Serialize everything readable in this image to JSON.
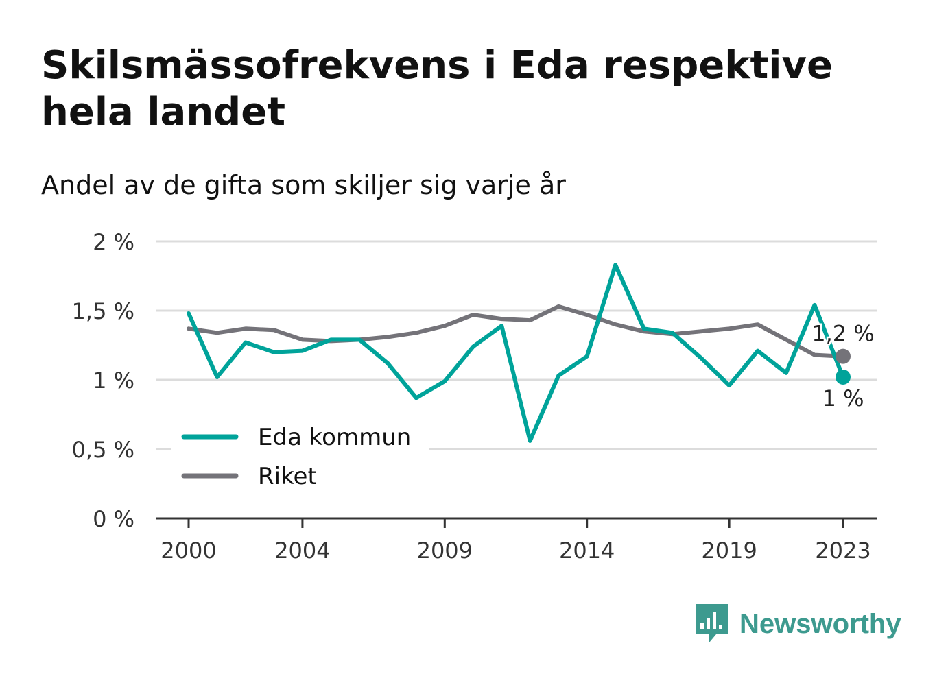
{
  "title": "Skilsmässofrekvens i Eda respektive hela landet",
  "subtitle": "Andel av de gifta som skiljer sig varje år",
  "brand": {
    "name": "Newsworthy",
    "icon": "bar-chart-speech-bubble-icon",
    "color": "#3d9a8f"
  },
  "chart_data": {
    "type": "line",
    "x": [
      2000,
      2001,
      2002,
      2003,
      2004,
      2005,
      2006,
      2007,
      2008,
      2009,
      2010,
      2011,
      2012,
      2013,
      2014,
      2015,
      2016,
      2017,
      2018,
      2019,
      2020,
      2021,
      2022,
      2023
    ],
    "x_tick_labels": [
      "2000",
      "2004",
      "2009",
      "2014",
      "2019",
      "2023"
    ],
    "y_tick_labels": [
      "0 %",
      "0,5 %",
      "1 %",
      "1,5 %",
      "2 %"
    ],
    "ylim": [
      0,
      2
    ],
    "grid": true,
    "legend_position": "bottom-left",
    "series": [
      {
        "name": "Eda kommun",
        "color": "#00a39a",
        "values": [
          1.48,
          1.02,
          1.27,
          1.2,
          1.21,
          1.29,
          1.29,
          1.12,
          0.87,
          0.99,
          1.24,
          1.39,
          0.56,
          1.03,
          1.17,
          1.83,
          1.37,
          1.34,
          1.16,
          0.96,
          1.21,
          1.05,
          1.54,
          1.02
        ],
        "end_label": "1 %"
      },
      {
        "name": "Riket",
        "color": "#747379",
        "values": [
          1.37,
          1.34,
          1.37,
          1.36,
          1.29,
          1.28,
          1.29,
          1.31,
          1.34,
          1.39,
          1.47,
          1.44,
          1.43,
          1.53,
          1.47,
          1.4,
          1.35,
          1.33,
          1.35,
          1.37,
          1.4,
          1.29,
          1.18,
          1.17
        ],
        "end_label": "1,2 %"
      }
    ]
  }
}
